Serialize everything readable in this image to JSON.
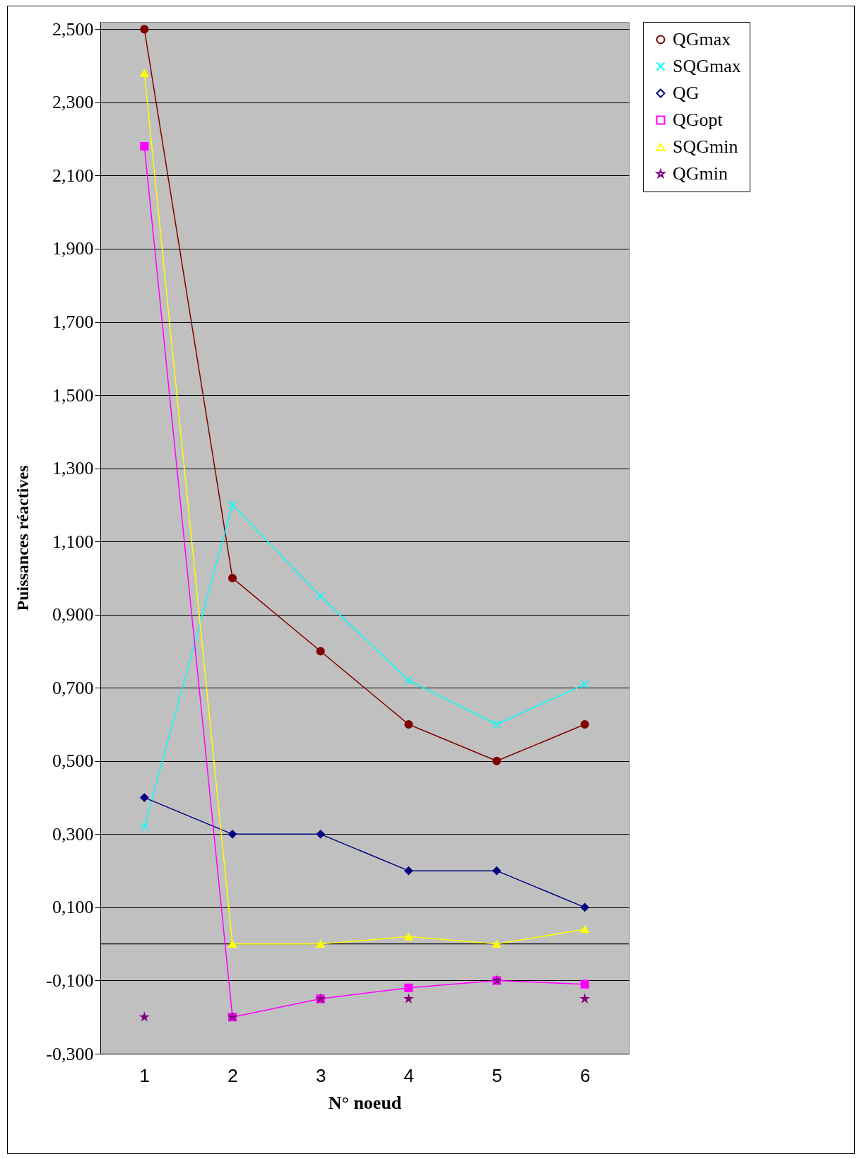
{
  "chart_data": {
    "type": "line",
    "xlabel": "N° noeud",
    "ylabel": "Puissances réactives",
    "categories": [
      "1",
      "2",
      "3",
      "4",
      "5",
      "6"
    ],
    "ylim": [
      -0.3,
      2.52
    ],
    "yticks": [
      {
        "value": -0.3,
        "label": "-0,300"
      },
      {
        "value": -0.1,
        "label": "-0,100"
      },
      {
        "value": 0.1,
        "label": "0,100"
      },
      {
        "value": 0.3,
        "label": "0,300"
      },
      {
        "value": 0.5,
        "label": "0,500"
      },
      {
        "value": 0.7,
        "label": "0,700"
      },
      {
        "value": 0.9,
        "label": "0,900"
      },
      {
        "value": 1.1,
        "label": "1,100"
      },
      {
        "value": 1.3,
        "label": "1,300"
      },
      {
        "value": 1.5,
        "label": "1,500"
      },
      {
        "value": 1.7,
        "label": "1,700"
      },
      {
        "value": 1.9,
        "label": "1,900"
      },
      {
        "value": 2.1,
        "label": "2,100"
      },
      {
        "value": 2.3,
        "label": "2,300"
      },
      {
        "value": 2.5,
        "label": "2,500"
      }
    ],
    "grid": "y",
    "legend": "right",
    "ref_lines": [
      {
        "axis": "y",
        "value": 0,
        "color": "#000000"
      }
    ],
    "series": [
      {
        "name": "QGmax",
        "color": "#800000",
        "marker": "circle",
        "values": [
          2.5,
          1.0,
          0.8,
          0.6,
          0.5,
          0.6
        ]
      },
      {
        "name": "SQGmax",
        "color": "#00ffff",
        "marker": "cross",
        "values": [
          0.32,
          1.2,
          0.95,
          0.72,
          0.6,
          0.71
        ]
      },
      {
        "name": "QG",
        "color": "#000080",
        "marker": "diamond",
        "values": [
          0.4,
          0.3,
          0.3,
          0.2,
          0.2,
          0.1
        ]
      },
      {
        "name": "QGopt",
        "color": "#ff00ff",
        "marker": "square",
        "values": [
          2.18,
          -0.2,
          -0.15,
          -0.12,
          -0.1,
          -0.11
        ]
      },
      {
        "name": "SQGmin",
        "color": "#ffff00",
        "marker": "triangle",
        "values": [
          2.38,
          0,
          0,
          0.02,
          0,
          0.04
        ]
      },
      {
        "name": "QGmin",
        "type": "scatter",
        "color": "#800080",
        "marker": "star",
        "values": [
          -0.2,
          -0.2,
          -0.15,
          -0.15,
          -0.1,
          -0.15
        ]
      }
    ]
  }
}
